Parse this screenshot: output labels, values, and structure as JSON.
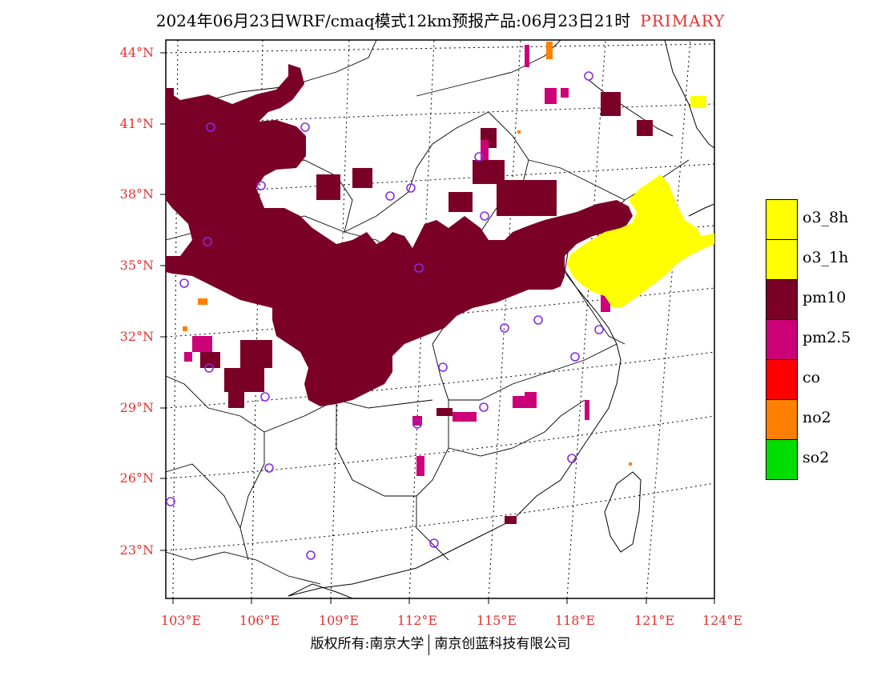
{
  "title": {
    "main": "2024年06月23日WRF/cmaq模式12km预报产品:06月23日21时",
    "tag": "PRIMARY"
  },
  "axes": {
    "lat_labels": [
      "44°N",
      "41°N",
      "38°N",
      "35°N",
      "32°N",
      "29°N",
      "26°N",
      "23°N"
    ],
    "lon_labels": [
      "103°E",
      "106°E",
      "109°E",
      "112°E",
      "115°E",
      "118°E",
      "121°E",
      "124°E"
    ]
  },
  "legend": [
    {
      "label": "o3_8h",
      "color": "#ffff00"
    },
    {
      "label": "o3_1h",
      "color": "#ffff00"
    },
    {
      "label": "pm10",
      "color": "#7a0028"
    },
    {
      "label": "pm2.5",
      "color": "#cc0077"
    },
    {
      "label": "co",
      "color": "#ff0000"
    },
    {
      "label": "no2",
      "color": "#ff8000"
    },
    {
      "label": "so2",
      "color": "#00dd00"
    }
  ],
  "footer": {
    "left": "版权所有:南京大学",
    "right": "南京创蓝科技有限公司"
  },
  "colors": {
    "pm10": "#7a0028",
    "pm25": "#cc0077",
    "o3": "#ffff00",
    "no2": "#ff8000",
    "station": "#8a2be2",
    "label": "#e83030"
  }
}
